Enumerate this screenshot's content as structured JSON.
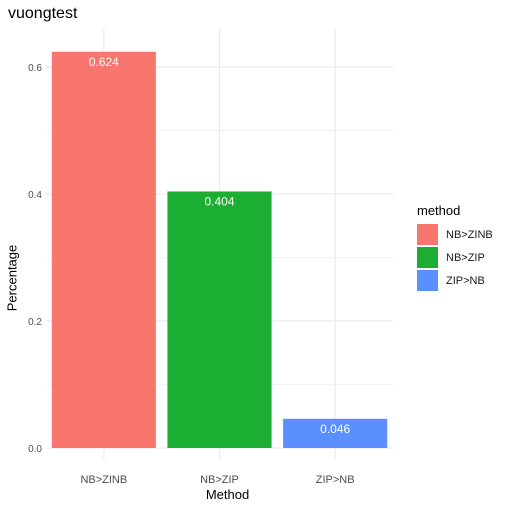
{
  "chart_data": {
    "type": "bar",
    "title": "vuongtest",
    "xlabel": "Method",
    "ylabel": "Percentage",
    "categories": [
      "NB>ZINB",
      "NB>ZIP",
      "ZIP>NB"
    ],
    "values": [
      0.624,
      0.404,
      0.046
    ],
    "data_labels": [
      "0.624",
      "0.404",
      "0.046"
    ],
    "colors": [
      "#F8766D",
      "#1CAE32",
      "#5B8EFF"
    ],
    "ylim": [
      0,
      0.65
    ],
    "yticks": [
      0.0,
      0.2,
      0.4,
      0.6
    ],
    "ytick_labels": [
      "0.0",
      "0.2",
      "0.4",
      "0.6"
    ],
    "grid": true,
    "legend": {
      "title": "method",
      "position": "right",
      "items": [
        {
          "label": "NB>ZINB",
          "color": "#F8766D"
        },
        {
          "label": "NB>ZIP",
          "color": "#1CAE32"
        },
        {
          "label": "ZIP>NB",
          "color": "#5B8EFF"
        }
      ]
    }
  }
}
